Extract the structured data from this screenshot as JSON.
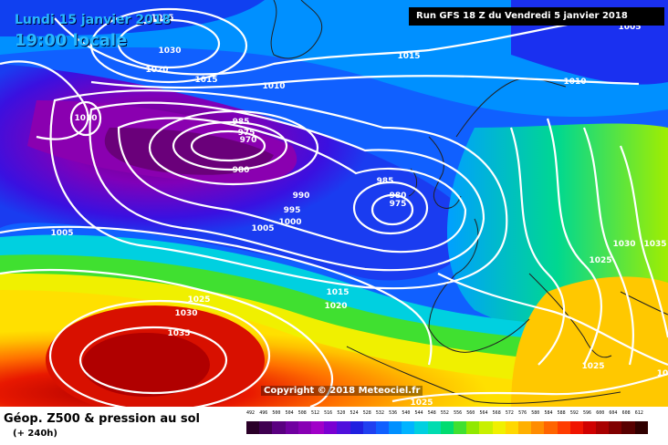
{
  "header": {
    "valid_date": "Lundi 15 janvier 2018",
    "valid_time": "19:00 locale",
    "run_info": "Run GFS 18 Z du Vendredi 5 janvier 2018"
  },
  "footer": {
    "title": "Géop. Z500 & pression au sol",
    "subtitle": "(+ 240h)",
    "copyright": "Copyright © 2018 Meteociel.fr"
  },
  "legend": {
    "values": [
      "492",
      "496",
      "500",
      "504",
      "508",
      "512",
      "516",
      "520",
      "524",
      "528",
      "532",
      "536",
      "540",
      "544",
      "548",
      "552",
      "556",
      "560",
      "564",
      "568",
      "572",
      "576",
      "580",
      "584",
      "588",
      "592",
      "596",
      "600",
      "604",
      "608",
      "612"
    ],
    "colors": [
      "#2a0028",
      "#3f0050",
      "#5a0080",
      "#7000a0",
      "#8800b4",
      "#a000c8",
      "#7a00d2",
      "#5010dc",
      "#2020e0",
      "#2040f0",
      "#1060ff",
      "#0090ff",
      "#00b4ff",
      "#00d0e0",
      "#00dcb0",
      "#00dc70",
      "#40e030",
      "#90e800",
      "#c8f000",
      "#f0f000",
      "#ffd800",
      "#ffb000",
      "#ff8c00",
      "#ff6400",
      "#ff3c00",
      "#f01400",
      "#d00000",
      "#a80000",
      "#800000",
      "#580000",
      "#300000"
    ]
  },
  "isobars": [
    {
      "label": "1025",
      "color": "#ffffff"
    },
    {
      "label": "1030",
      "color": "#ffffff"
    },
    {
      "label": "1020",
      "color": "#ffffff"
    },
    {
      "label": "1015",
      "color": "#ffffff"
    },
    {
      "label": "1010",
      "color": "#ffffff"
    },
    {
      "label": "1015",
      "color": "#ffffff"
    },
    {
      "label": "1010",
      "color": "#ffffff"
    },
    {
      "label": "1005",
      "color": "#ffffff"
    },
    {
      "label": "1010",
      "color": "#ffffff"
    },
    {
      "label": "985",
      "color": "#ffffff"
    },
    {
      "label": "975",
      "color": "#ffffff"
    },
    {
      "label": "970",
      "color": "#ffffff"
    },
    {
      "label": "980",
      "color": "#ffffff"
    },
    {
      "label": "985",
      "color": "#ffffff"
    },
    {
      "label": "980",
      "color": "#ffffff"
    },
    {
      "label": "975",
      "color": "#ffffff"
    },
    {
      "label": "990",
      "color": "#ffffff"
    },
    {
      "label": "995",
      "color": "#ffffff"
    },
    {
      "label": "1000",
      "color": "#ffffff"
    },
    {
      "label": "1005",
      "color": "#ffffff"
    },
    {
      "label": "1005",
      "color": "#ffffff"
    },
    {
      "label": "1030",
      "color": "#ffffff"
    },
    {
      "label": "1035",
      "color": "#ffffff"
    },
    {
      "label": "1025",
      "color": "#ffffff"
    },
    {
      "label": "1015",
      "color": "#ffffff"
    },
    {
      "label": "1020",
      "color": "#ffffff"
    },
    {
      "label": "1025",
      "color": "#ffffff"
    },
    {
      "label": "1030",
      "color": "#ffffff"
    },
    {
      "label": "1035",
      "color": "#ffffff"
    },
    {
      "label": "1025",
      "color": "#ffffff"
    },
    {
      "label": "1025",
      "color": "#ffffff"
    },
    {
      "label": "10",
      "color": "#ffffff"
    }
  ]
}
